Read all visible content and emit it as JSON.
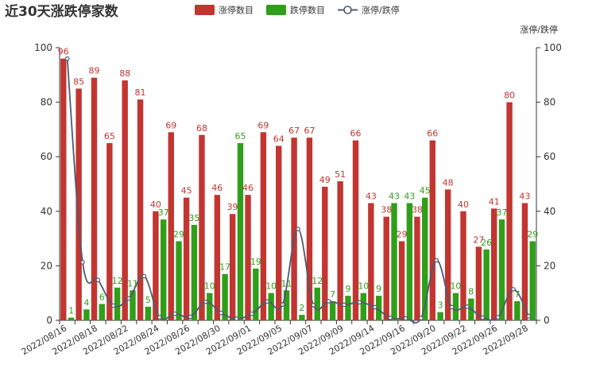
{
  "title": "近30天涨跌停家数",
  "legend": [
    {
      "name": "涨停数目",
      "icon": "rect",
      "color": "#c23531"
    },
    {
      "name": "跌停数目",
      "icon": "rect",
      "color": "#2f9f1a"
    },
    {
      "name": "涨停/跌停",
      "icon": "line-circle",
      "color": "#4f5a6e"
    }
  ],
  "chart_data": {
    "type": "bar",
    "title": "近30天涨跌停家数",
    "categories": [
      "2022/08/16",
      "2022/08/17",
      "2022/08/18",
      "2022/08/19",
      "2022/08/22",
      "2022/08/23",
      "2022/08/24",
      "2022/08/25",
      "2022/08/26",
      "2022/08/29",
      "2022/08/30",
      "2022/08/31",
      "2022/09/01",
      "2022/09/02",
      "2022/09/05",
      "2022/09/06",
      "2022/09/07",
      "2022/09/08",
      "2022/09/09",
      "2022/09/13",
      "2022/09/14",
      "2022/09/15",
      "2022/09/16",
      "2022/09/19",
      "2022/09/20",
      "2022/09/21",
      "2022/09/22",
      "2022/09/23",
      "2022/09/26",
      "2022/09/27",
      "2022/09/28"
    ],
    "x_tick_labels": [
      "2022/08/16",
      "2022/08/18",
      "2022/08/22",
      "2022/08/24",
      "2022/08/26",
      "2022/08/30",
      "2022/09/01",
      "2022/09/05",
      "2022/09/07",
      "2022/09/09",
      "2022/09/14",
      "2022/09/16",
      "2022/09/20",
      "2022/09/22",
      "2022/09/26",
      "2022/09/28"
    ],
    "series": [
      {
        "name": "涨停数目",
        "type": "bar",
        "color": "#c23531",
        "values": [
          96,
          85,
          89,
          65,
          88,
          81,
          40,
          69,
          45,
          68,
          46,
          39,
          46,
          69,
          64,
          67,
          67,
          49,
          51,
          66,
          43,
          38,
          29,
          38,
          66,
          48,
          40,
          27,
          41,
          80,
          43
        ]
      },
      {
        "name": "跌停数目",
        "type": "bar",
        "color": "#2f9f1a",
        "values": [
          1,
          4,
          6,
          12,
          11,
          5,
          37,
          29,
          35,
          10,
          17,
          65,
          19,
          10,
          11,
          2,
          12,
          7,
          9,
          10,
          9,
          43,
          43,
          45,
          3,
          10,
          8,
          26,
          37,
          7,
          29
        ]
      },
      {
        "name": "涨停/跌停",
        "type": "line",
        "smooth": true,
        "color": "#4f5a6e",
        "axis": "right",
        "values": [
          96,
          21.3,
          14.8,
          5.4,
          8,
          16.2,
          1.1,
          2.4,
          1.3,
          6.8,
          2.7,
          0.6,
          2.4,
          6.9,
          5.8,
          33.5,
          5.6,
          7,
          5.7,
          6.6,
          4.8,
          0.9,
          0.7,
          0.8,
          22,
          4.8,
          5,
          1,
          1.1,
          11.4,
          1.5
        ]
      }
    ],
    "ylim": [
      0,
      100
    ],
    "y_ticks": [
      0,
      20,
      40,
      60,
      80,
      100
    ],
    "y2label": "涨停/跌停",
    "y2lim": [
      0,
      100
    ],
    "y2_ticks": [
      0,
      20,
      40,
      60,
      80,
      100
    ],
    "legend_position": "top-center",
    "grid": false
  }
}
